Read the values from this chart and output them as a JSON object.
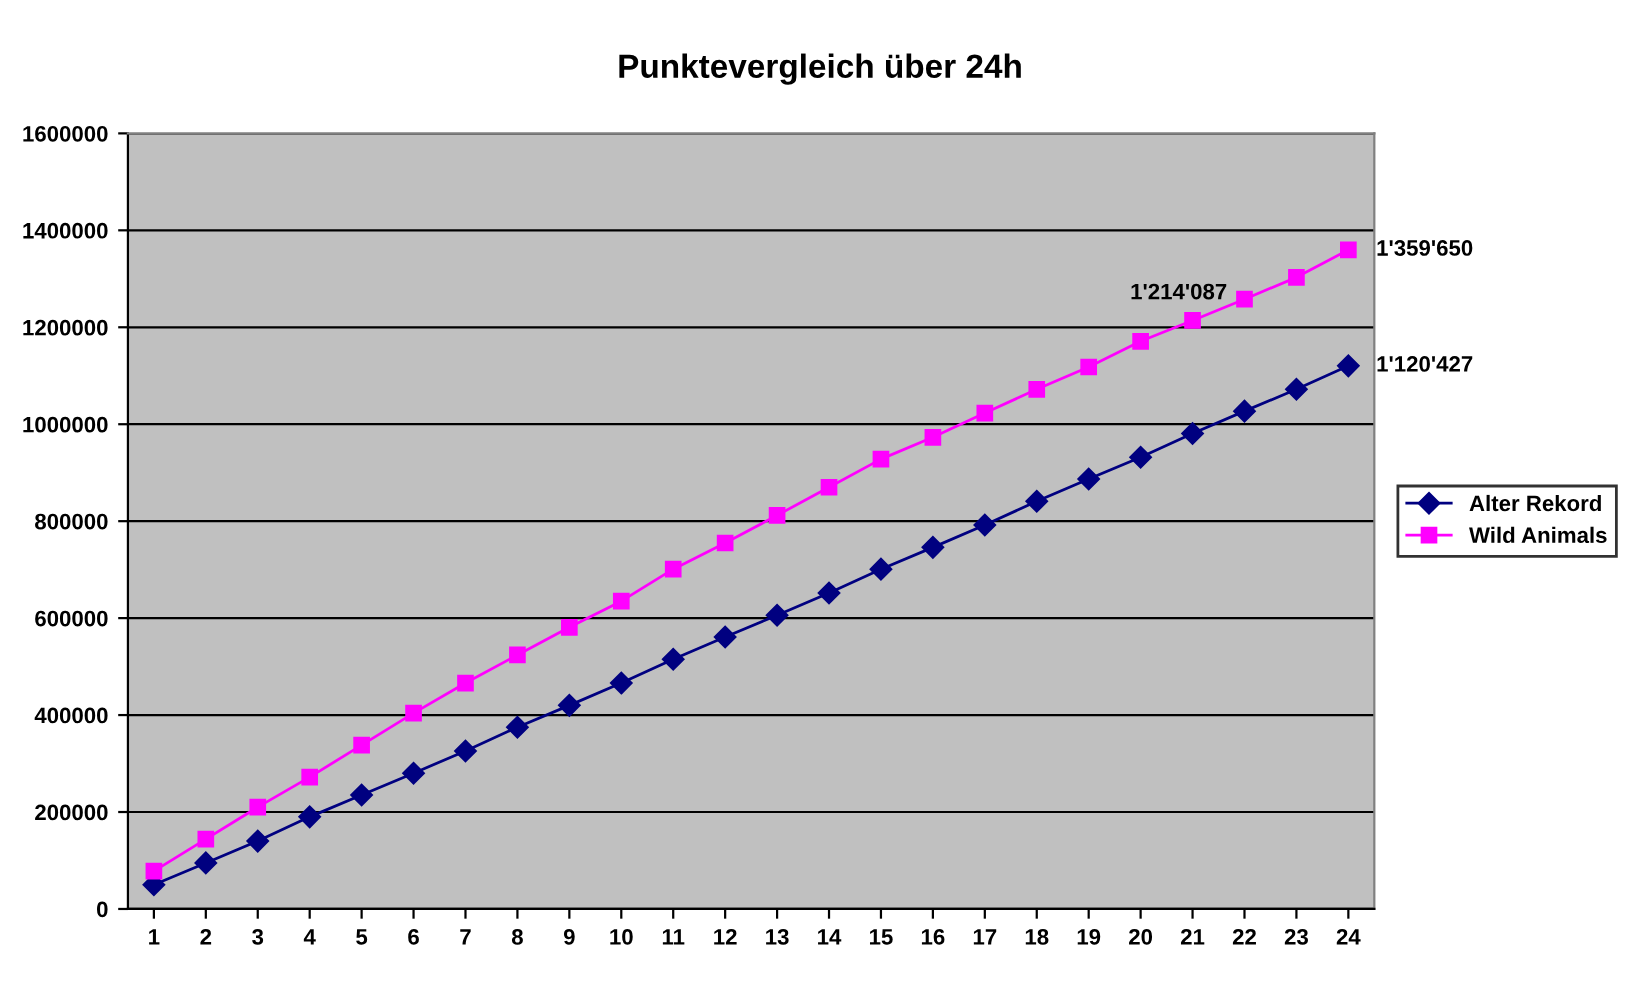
{
  "chart_data": {
    "type": "line",
    "title": "Punktevergleich über 24h",
    "categories": [
      "1",
      "2",
      "3",
      "4",
      "5",
      "6",
      "7",
      "8",
      "9",
      "10",
      "11",
      "12",
      "13",
      "14",
      "15",
      "16",
      "17",
      "18",
      "19",
      "20",
      "21",
      "22",
      "23",
      "24"
    ],
    "series": [
      {
        "name": "Alter Rekord",
        "color": "#000080",
        "marker": "diamond",
        "values": [
          50000,
          95000,
          140000,
          190000,
          235000,
          280000,
          326000,
          375000,
          420000,
          466000,
          515000,
          561000,
          606000,
          652000,
          701000,
          746000,
          792000,
          841000,
          887000,
          932000,
          981000,
          1027000,
          1072000,
          1120427
        ],
        "value_labels": [
          null,
          null,
          null,
          null,
          null,
          null,
          null,
          null,
          null,
          null,
          null,
          null,
          null,
          null,
          null,
          null,
          null,
          null,
          null,
          null,
          null,
          null,
          null,
          "1'120'427"
        ]
      },
      {
        "name": "Wild Animals",
        "color": "#ff00ff",
        "marker": "square",
        "values": [
          78000,
          144000,
          210000,
          272000,
          338000,
          404000,
          466000,
          524000,
          581000,
          635000,
          701000,
          755000,
          812000,
          870000,
          928000,
          973000,
          1023000,
          1072000,
          1118000,
          1171000,
          1214087,
          1258000,
          1303000,
          1359650
        ],
        "value_labels": [
          null,
          null,
          null,
          null,
          null,
          null,
          null,
          null,
          null,
          null,
          null,
          null,
          null,
          null,
          null,
          null,
          null,
          null,
          null,
          null,
          "1'214'087",
          null,
          null,
          "1'359'650"
        ]
      }
    ],
    "ylim": [
      0,
      1600000
    ],
    "yticks": [
      0,
      200000,
      400000,
      600000,
      800000,
      1000000,
      1200000,
      1400000,
      1600000
    ],
    "grid": "y",
    "legend": "right",
    "line_style": "solid"
  }
}
